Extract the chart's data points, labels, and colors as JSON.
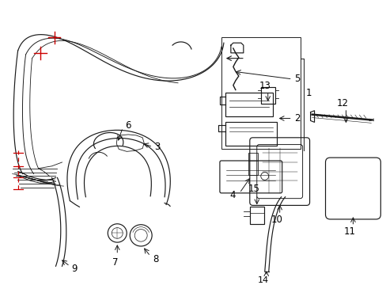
{
  "bg_color": "#ffffff",
  "line_color": "#1a1a1a",
  "red_color": "#cc0000",
  "label_color": "#000000",
  "figsize": [
    4.89,
    3.6
  ],
  "dpi": 100,
  "lw": 0.85
}
